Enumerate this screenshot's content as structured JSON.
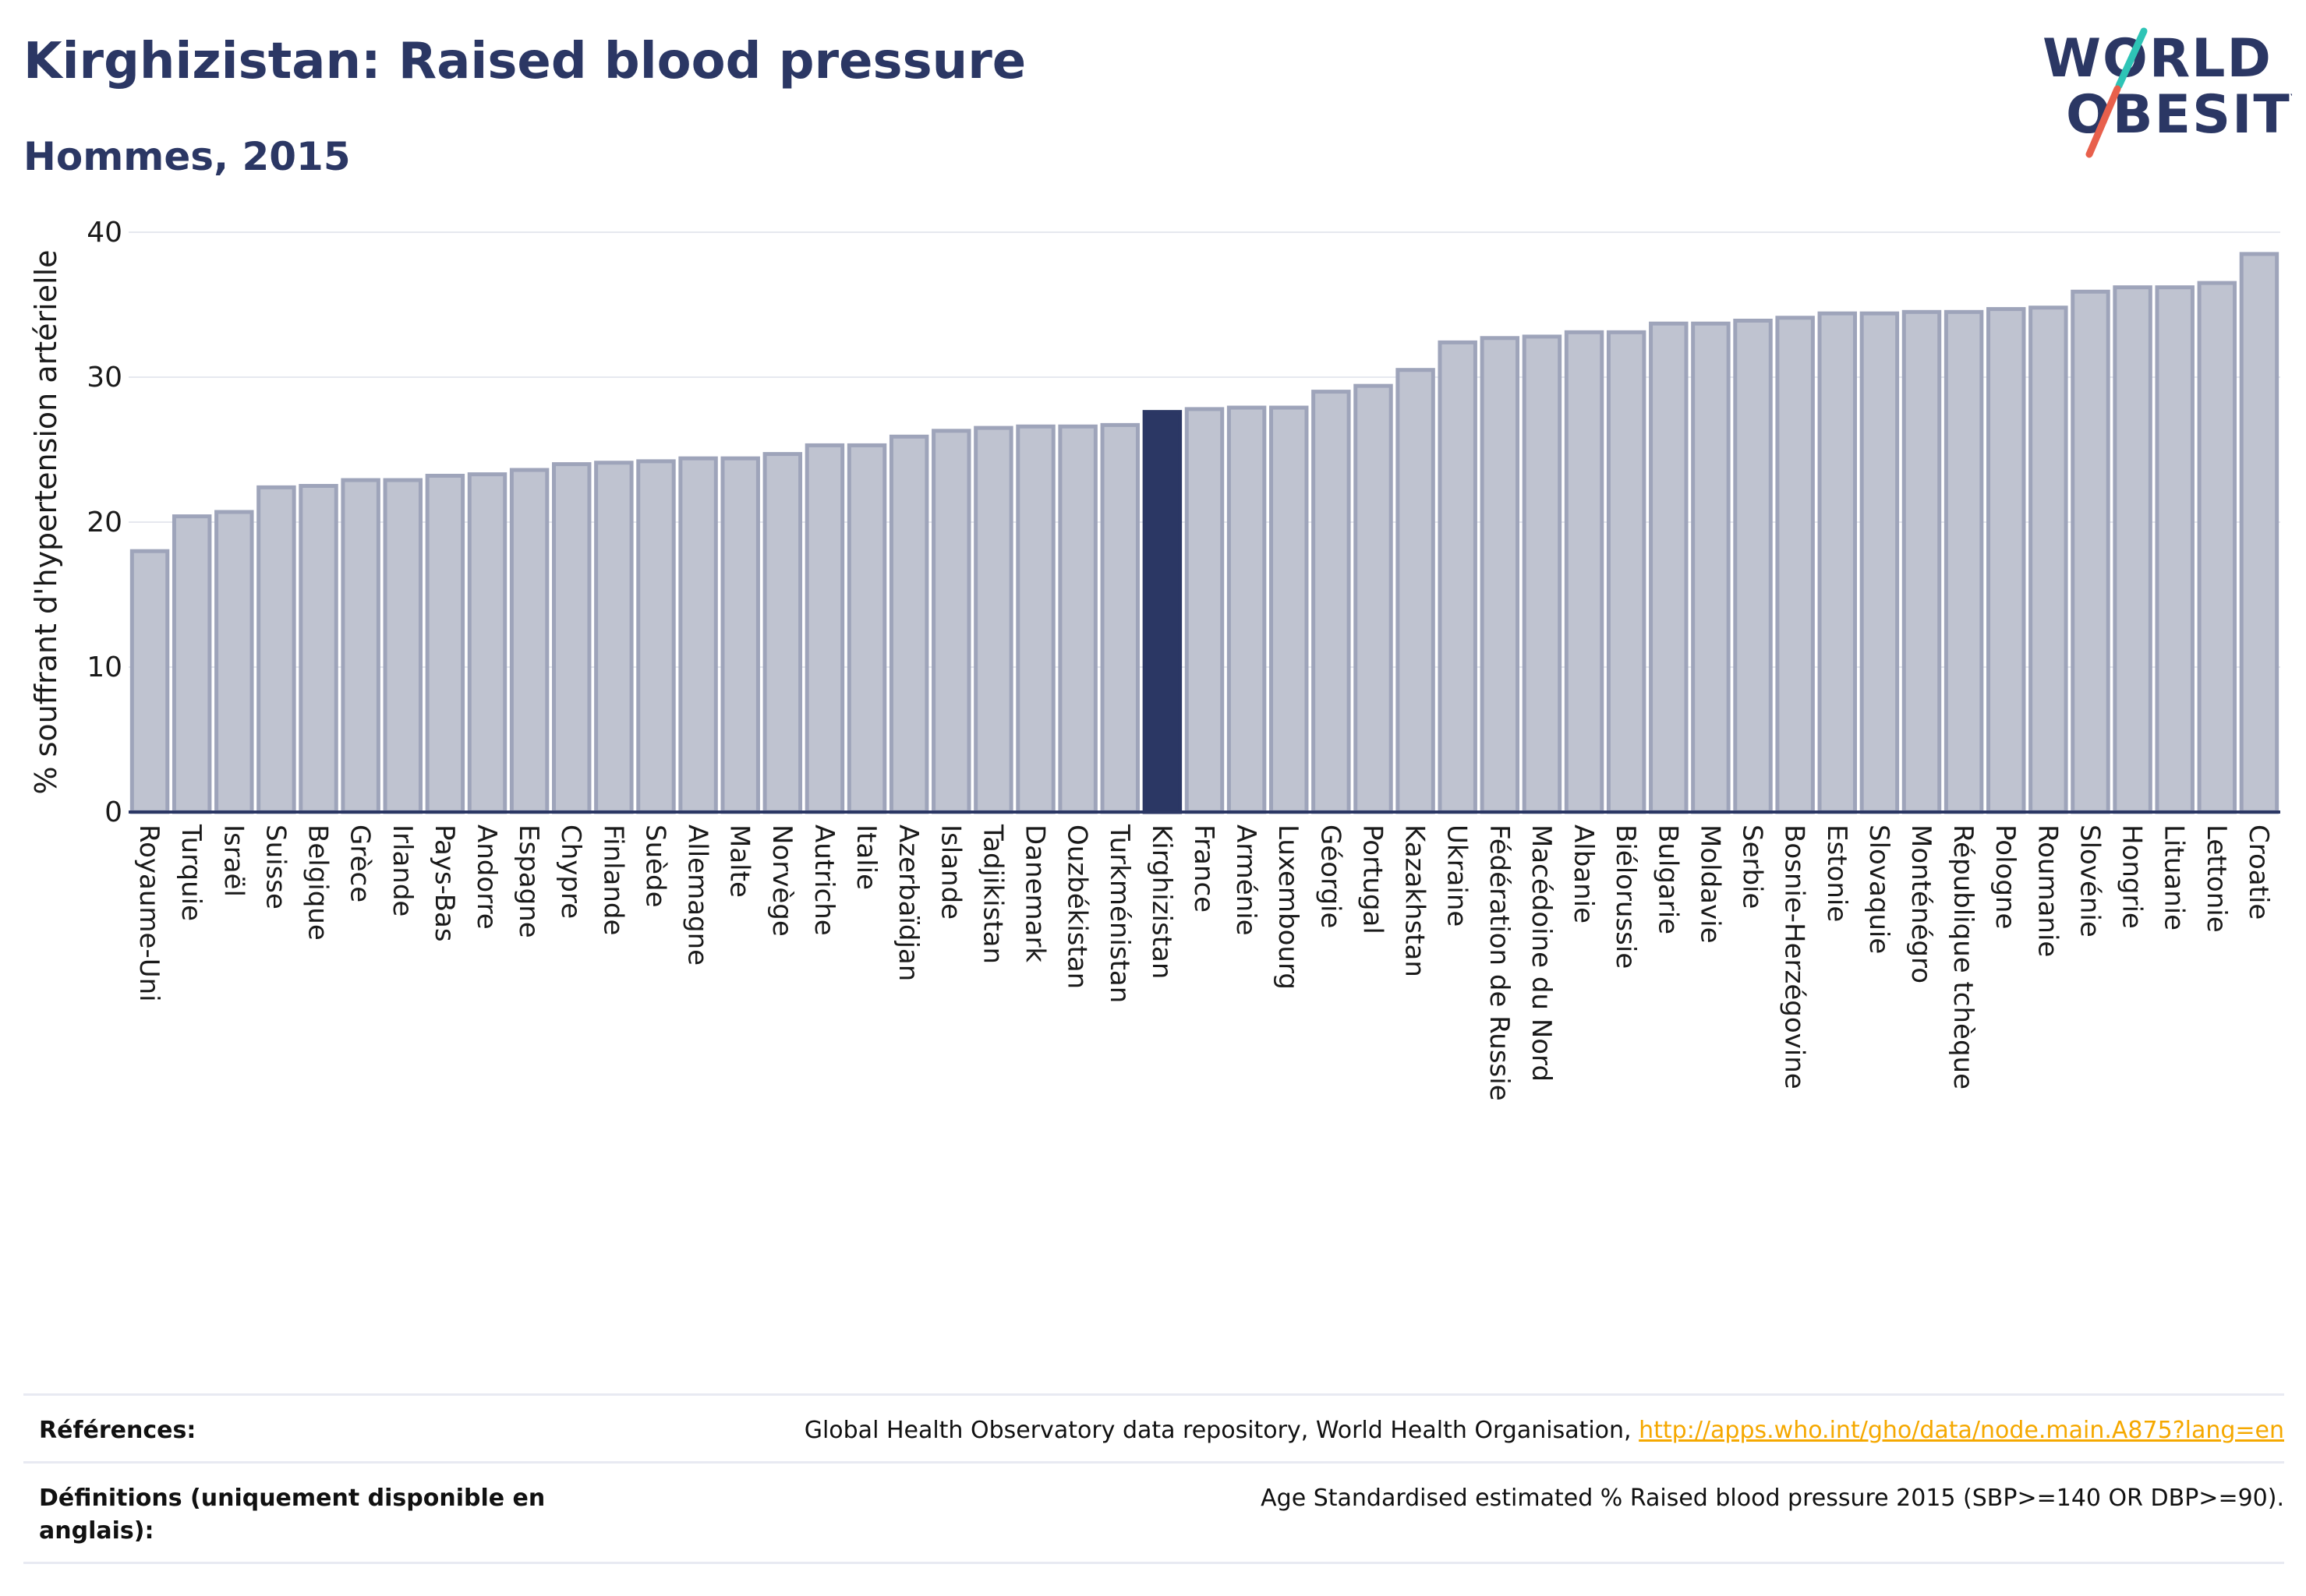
{
  "header": {
    "title": "Kirghizistan: Raised blood pressure",
    "subtitle": "Hommes, 2015"
  },
  "logo": {
    "line1": "WORLD",
    "line2": "OBESITY",
    "text_color": "#2b3764",
    "slash_teal": "#2ec4b6",
    "slash_red": "#e8604c"
  },
  "colors": {
    "bar_fill": "#bfc3d0",
    "bar_stroke": "#9ea4ba",
    "highlight_fill": "#2b3764",
    "axis": "#2b3764",
    "grid": "#e6e8ef"
  },
  "chart_data": {
    "type": "bar",
    "title": "Kirghizistan: Raised blood pressure",
    "subtitle": "Hommes, 2015",
    "ylabel": "% souffrant d'hypertension artérielle",
    "xlabel": "",
    "ylim": [
      0,
      40
    ],
    "yticks": [
      0,
      10,
      20,
      30,
      40
    ],
    "grid": true,
    "highlight": "Kirghizistan",
    "categories": [
      "Royaume-Uni",
      "Turquie",
      "Israël",
      "Suisse",
      "Belgique",
      "Grèce",
      "Irlande",
      "Pays-Bas",
      "Andorre",
      "Espagne",
      "Chypre",
      "Finlande",
      "Suède",
      "Allemagne",
      "Malte",
      "Norvège",
      "Autriche",
      "Italie",
      "Azerbaïdjan",
      "Islande",
      "Tadjikistan",
      "Danemark",
      "Ouzbékistan",
      "Turkménistan",
      "Kirghizistan",
      "France",
      "Arménie",
      "Luxembourg",
      "Géorgie",
      "Portugal",
      "Kazakhstan",
      "Ukraine",
      "Fédération de Russie",
      "Macédoine du Nord",
      "Albanie",
      "Biélorussie",
      "Bulgarie",
      "Moldavie",
      "Serbie",
      "Bosnie-Herzégovine",
      "Estonie",
      "Slovaquie",
      "Monténégro",
      "République tchèque",
      "Pologne",
      "Roumanie",
      "Slovénie",
      "Hongrie",
      "Lituanie",
      "Lettonie",
      "Croatie"
    ],
    "values": [
      18.0,
      20.4,
      20.7,
      22.4,
      22.5,
      22.9,
      22.9,
      23.2,
      23.3,
      23.6,
      24.0,
      24.1,
      24.2,
      24.4,
      24.4,
      24.7,
      25.3,
      25.3,
      25.9,
      26.3,
      26.5,
      26.6,
      26.6,
      26.7,
      27.6,
      27.8,
      27.9,
      27.9,
      29.0,
      29.4,
      30.5,
      32.4,
      32.7,
      32.8,
      33.1,
      33.1,
      33.7,
      33.7,
      33.9,
      34.1,
      34.4,
      34.4,
      34.5,
      34.5,
      34.7,
      34.8,
      35.9,
      36.2,
      36.2,
      36.5,
      38.5
    ]
  },
  "footer": {
    "refs_label": "Références:",
    "refs_text": "Global Health Observatory data repository, World Health Organisation,",
    "refs_link": "http://apps.who.int/gho/data/node.main.A875?lang=en",
    "defs_label": "Définitions (uniquement disponible en anglais):",
    "defs_text": "Age Standardised estimated % Raised blood pressure 2015 (SBP>=140 OR DBP>=90)."
  }
}
